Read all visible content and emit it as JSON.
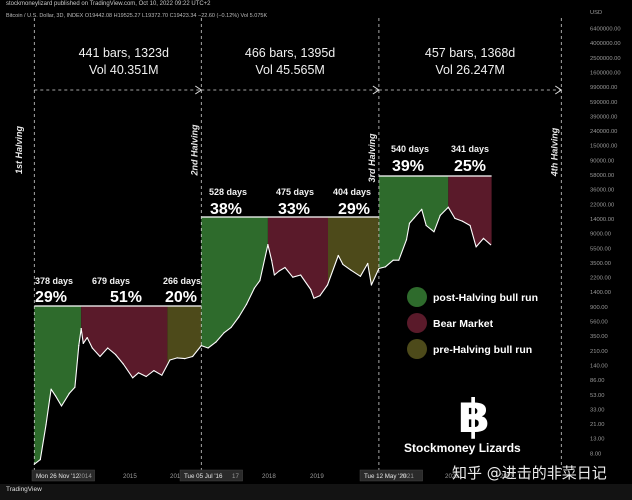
{
  "header": {
    "published": "stockmoneylizard published on TradingView.com, Oct 10, 2022 09:22 UTC+2",
    "ohlc": "Bitcoin / U.S. Dollar, 3D, INDEX  O19442.08  H19525.27  L19372.70  C19423.34  −22.60 (−0.12%)  Vol 5.075K"
  },
  "footer": {
    "tradingview": "TradingView",
    "watermark": "知乎 @进击的非菜日记"
  },
  "colors": {
    "background": "#000000",
    "bull": "#2e6b2c",
    "bear": "#5a1a2a",
    "pre_halving": "#4d4a1a",
    "price_line": "#ffffff"
  },
  "chart_data": {
    "type": "line",
    "title": "",
    "xlabel": "",
    "ylabel": "USD",
    "scale": "log",
    "x_ticks": [
      "Mon 26 Nov '12",
      "2014",
      "2015",
      "201",
      "Tue 05 Jul '16",
      "17",
      "2018",
      "2019",
      "Tue 12 May '20",
      "2021",
      "2022",
      "2023"
    ],
    "y_ticks": [
      "6400000.00",
      "4000000.00",
      "2500000.00",
      "1600000.00",
      "990000.00",
      "590000.00",
      "390000.00",
      "240000.00",
      "150000.00",
      "90000.00",
      "58000.00",
      "36000.00",
      "22000.00",
      "14000.00",
      "9000.00",
      "5500.00",
      "3500.00",
      "2200.00",
      "1400.00",
      "900.00",
      "560.00",
      "350.00",
      "210.00",
      "140.00",
      "86.00",
      "53.00",
      "33.00",
      "21.00",
      "13.00",
      "8.00"
    ],
    "halvings": [
      "1st Halving",
      "2nd Halving",
      "3rd Halving",
      "4th Halving"
    ],
    "cycles": [
      {
        "bars": "441 bars, 1323d",
        "vol": "Vol 40.351M"
      },
      {
        "bars": "466 bars, 1395d",
        "vol": "Vol 45.565M"
      },
      {
        "bars": "457 bars, 1368d",
        "vol": "Vol 26.247M"
      }
    ],
    "phases": [
      {
        "days": "378 days",
        "pct": "29%",
        "phase": "post-Halving bull run"
      },
      {
        "days": "679 days",
        "pct": "51%",
        "phase": "Bear Market"
      },
      {
        "days": "266 days",
        "pct": "20%",
        "phase": "pre-Halving bull run"
      },
      {
        "days": "528 days",
        "pct": "38%",
        "phase": "post-Halving bull run"
      },
      {
        "days": "475 days",
        "pct": "33%",
        "phase": "Bear Market"
      },
      {
        "days": "404 days",
        "pct": "29%",
        "phase": "pre-Halving bull run"
      },
      {
        "days": "540 days",
        "pct": "39%",
        "phase": "post-Halving bull run"
      },
      {
        "days": "341 days",
        "pct": "25%",
        "phase": "Bear Market"
      }
    ],
    "series": [
      {
        "dates": [
          "2012-11-28",
          "2013-01-15",
          "2013-03-01",
          "2013-04-10",
          "2013-05-15",
          "2013-07-01",
          "2013-09-01",
          "2013-10-15",
          "2013-11-15",
          "2013-12-04",
          "2013-12-20",
          "2014-01-20",
          "2014-03-01",
          "2014-05-01",
          "2014-07-01",
          "2014-09-01",
          "2014-11-01",
          "2015-01-14",
          "2015-03-01",
          "2015-05-01",
          "2015-07-01",
          "2015-09-01",
          "2015-11-04",
          "2016-01-01",
          "2016-03-01",
          "2016-05-01",
          "2016-07-09",
          "2016-09-01",
          "2016-11-01",
          "2017-01-04",
          "2017-03-01",
          "2017-05-01",
          "2017-07-01",
          "2017-09-01",
          "2017-10-15",
          "2017-12-17",
          "2018-01-15",
          "2018-02-06",
          "2018-03-15",
          "2018-05-01",
          "2018-07-01",
          "2018-09-01",
          "2018-11-20",
          "2018-12-15",
          "2019-02-01",
          "2019-04-01",
          "2019-06-26",
          "2019-08-01",
          "2019-10-01",
          "2019-12-17",
          "2020-02-13",
          "2020-03-13",
          "2020-05-11",
          "2020-07-01",
          "2020-09-01",
          "2020-10-15",
          "2020-12-15",
          "2021-01-08",
          "2021-02-15",
          "2021-04-14",
          "2021-05-20",
          "2021-07-20",
          "2021-09-07",
          "2021-11-10",
          "2022-01-01",
          "2022-03-01",
          "2022-05-01",
          "2022-06-18",
          "2022-08-15",
          "2022-10-10"
        ],
        "values": [
          12,
          14,
          45,
          150,
          120,
          85,
          130,
          160,
          650,
          1150,
          700,
          850,
          600,
          450,
          600,
          480,
          350,
          220,
          260,
          230,
          280,
          240,
          400,
          430,
          420,
          450,
          650,
          600,
          730,
          1000,
          1200,
          1700,
          2600,
          4500,
          5800,
          19500,
          11500,
          7000,
          8000,
          9000,
          6500,
          7000,
          4300,
          3200,
          3500,
          5000,
          13500,
          10000,
          8300,
          6700,
          10300,
          5000,
          8700,
          9200,
          11500,
          11500,
          23000,
          40000,
          48000,
          64000,
          37000,
          30000,
          52000,
          68700,
          47000,
          43000,
          37000,
          18000,
          24000,
          19400
        ]
      }
    ],
    "legend": [
      "post-Halving bull run",
      "Bear Market",
      "pre-Halving bull run"
    ],
    "legend_position": "right",
    "branding": "Stockmoney Lizards",
    "logo": "bitcoin-logo"
  }
}
